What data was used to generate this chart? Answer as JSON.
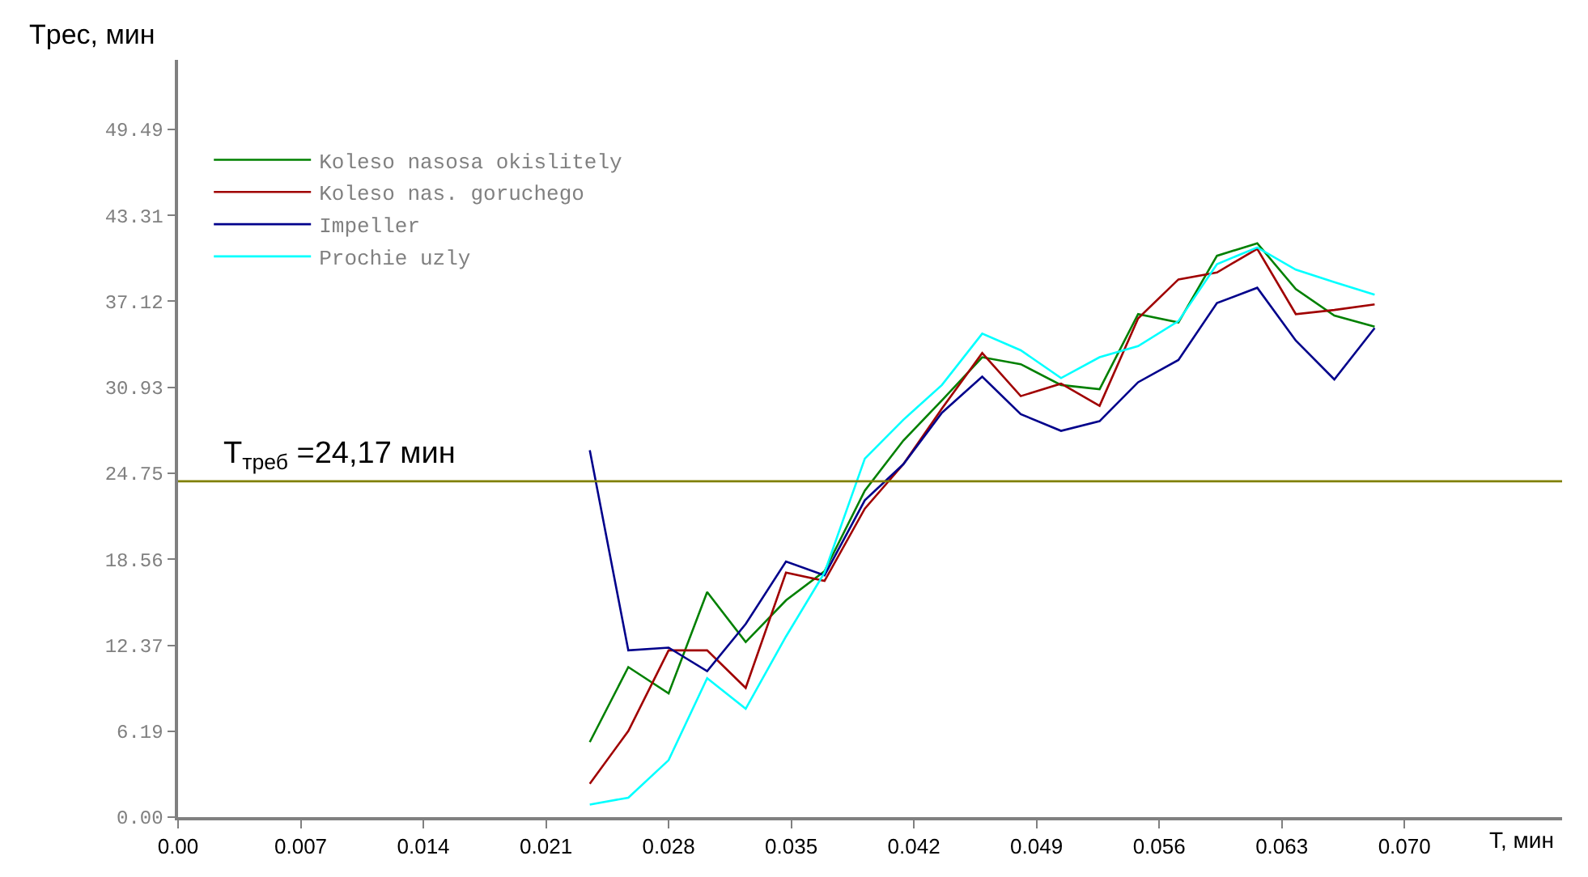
{
  "chart_data": {
    "type": "line",
    "ylabel": "Tрес, мин",
    "xlabel": "T, мин",
    "x": [
      0.0235,
      0.0257,
      0.028,
      0.0302,
      0.0324,
      0.0347,
      0.0369,
      0.0392,
      0.0414,
      0.0436,
      0.0459,
      0.0481,
      0.0504,
      0.0526,
      0.0548,
      0.0571,
      0.0593,
      0.0616,
      0.0638,
      0.066,
      0.0683
    ],
    "series": [
      {
        "name": "Koleso nasosa okislitely",
        "color": "#008000",
        "values": [
          5.4,
          10.8,
          8.9,
          16.2,
          12.6,
          15.6,
          17.7,
          23.5,
          27.1,
          30.0,
          33.1,
          32.6,
          31.1,
          30.8,
          36.2,
          35.6,
          40.4,
          41.3,
          38.0,
          36.1,
          35.3
        ]
      },
      {
        "name": "Koleso nas. goruchego",
        "color": "#a00000",
        "values": [
          2.4,
          6.2,
          12.0,
          12.0,
          9.3,
          17.6,
          17.0,
          22.2,
          25.4,
          29.4,
          33.4,
          30.3,
          31.2,
          29.6,
          35.9,
          38.7,
          39.2,
          40.9,
          36.2,
          36.5,
          36.9
        ]
      },
      {
        "name": "Impeller",
        "color": "#00008b",
        "values": [
          26.4,
          12.0,
          12.2,
          10.5,
          13.9,
          18.4,
          17.4,
          22.8,
          25.4,
          29.1,
          31.7,
          29.0,
          27.8,
          28.5,
          31.3,
          32.9,
          37.0,
          38.1,
          34.3,
          31.5,
          35.2
        ]
      },
      {
        "name": "Prochie uzly",
        "color": "#00ffff",
        "values": [
          0.9,
          1.4,
          4.1,
          10.0,
          7.8,
          13.0,
          17.6,
          25.8,
          28.6,
          31.1,
          34.8,
          33.6,
          31.6,
          33.1,
          33.9,
          35.7,
          39.8,
          41.0,
          39.4,
          38.5,
          37.6
        ]
      }
    ],
    "xlim": [
      0,
      0.079
    ],
    "xticks": [
      {
        "value": 0,
        "label": "0.00"
      },
      0.007,
      0.014,
      0.021,
      0.028,
      0.035,
      0.042,
      0.049,
      0.056,
      0.063,
      {
        "value": 0.07,
        "label": "0.070"
      }
    ],
    "ylim": [
      0,
      54.5
    ],
    "yticks": [
      {
        "value": 0,
        "label": "0.00"
      },
      6.19,
      12.37,
      18.56,
      24.75,
      30.93,
      37.12,
      43.31,
      49.49
    ],
    "ref_lines": [
      {
        "axis": "y",
        "value": 24.17,
        "label": "T$_{треб}$ =24,17 мин",
        "color": "#808000"
      }
    ],
    "legend": "top left",
    "marker": "none",
    "line_style": "solid"
  }
}
